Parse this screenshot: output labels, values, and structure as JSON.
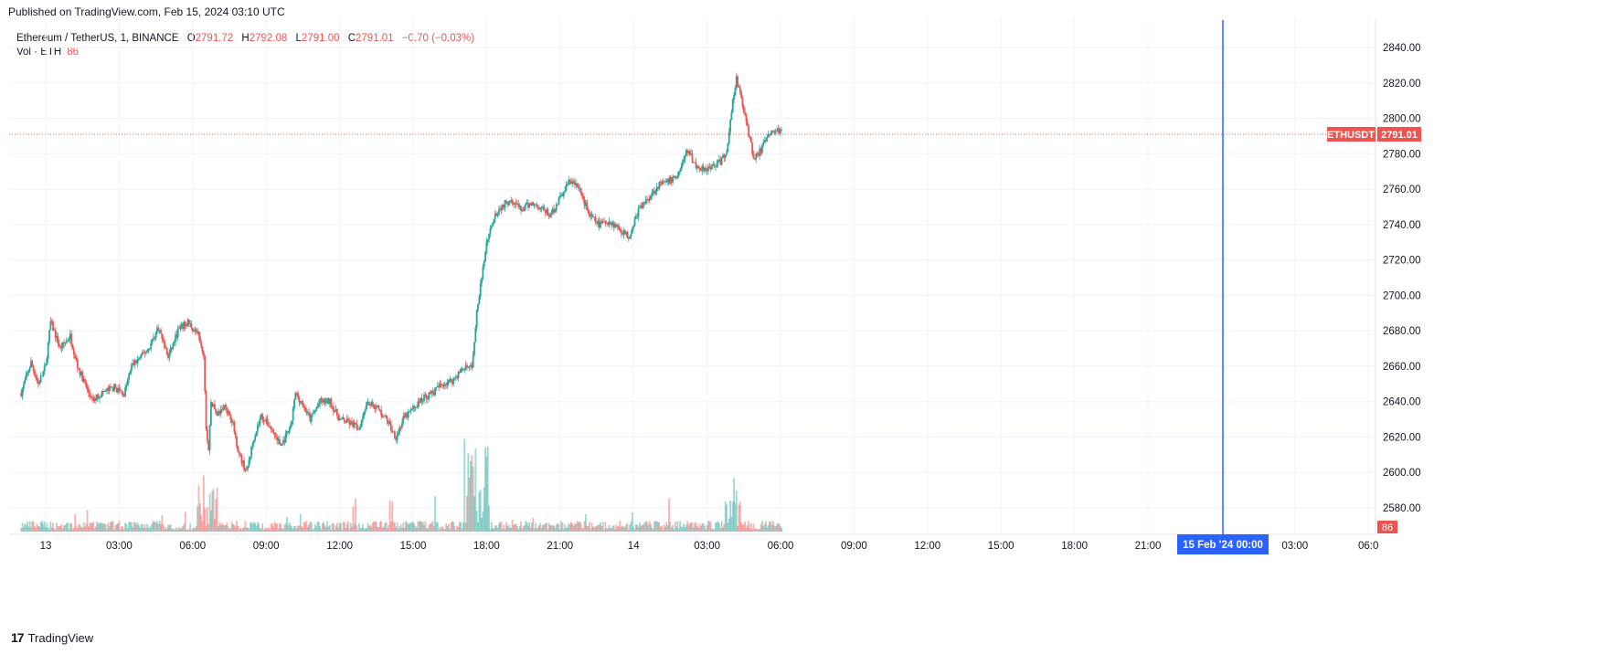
{
  "header": {
    "published": "Published on TradingView.com, Feb 15, 2024 03:10 UTC",
    "symbol": "Ethereum / TetherUS, 1, BINANCE",
    "open_label": "O",
    "open": "2791.72",
    "high_label": "H",
    "high": "2792.08",
    "low_label": "L",
    "low": "2791.00",
    "close_label": "C",
    "close": "2791.01",
    "change": "−0.70 (−0.03%)",
    "vol_label": "Vol · ETH",
    "vol_value": "86"
  },
  "price_label": {
    "ticker": "ETHUSDT",
    "price": "2791.01"
  },
  "volume_badge": "86",
  "crosshair_label": "15 Feb '24   00:00",
  "footer": {
    "brand": "TradingView"
  },
  "colors": {
    "up": "#26a69a",
    "down": "#ef5350",
    "crosshair": "#2962ff",
    "grid": "#f0f3fa",
    "price_line": "#ef5350"
  },
  "chart_data": {
    "type": "candlestick",
    "ylim": [
      2570,
      2850
    ],
    "y_ticks": [
      "2840.00",
      "2820.00",
      "2800.00",
      "2780.00",
      "2760.00",
      "2740.00",
      "2720.00",
      "2700.00",
      "2680.00",
      "2660.00",
      "2640.00",
      "2620.00",
      "2600.00",
      "2580.00"
    ],
    "x_ticks": [
      "13",
      "03:00",
      "06:00",
      "09:00",
      "12:00",
      "15:00",
      "18:00",
      "21:00",
      "14",
      "03:00",
      "06:00",
      "09:00",
      "12:00",
      "15:00",
      "18:00",
      "21:00",
      "03:00",
      "06:0"
    ],
    "last_price": 2791.01,
    "price_path": [
      [
        -1.0,
        2645
      ],
      [
        -0.6,
        2662
      ],
      [
        -0.3,
        2650
      ],
      [
        0.0,
        2660
      ],
      [
        0.2,
        2685
      ],
      [
        0.6,
        2670
      ],
      [
        1.0,
        2677
      ],
      [
        1.3,
        2660
      ],
      [
        1.6,
        2650
      ],
      [
        1.9,
        2640
      ],
      [
        2.3,
        2645
      ],
      [
        2.8,
        2648
      ],
      [
        3.2,
        2644
      ],
      [
        3.5,
        2660
      ],
      [
        3.8,
        2664
      ],
      [
        4.2,
        2670
      ],
      [
        4.6,
        2682
      ],
      [
        5.0,
        2665
      ],
      [
        5.4,
        2680
      ],
      [
        5.8,
        2685
      ],
      [
        6.2,
        2678
      ],
      [
        6.45,
        2665
      ],
      [
        6.55,
        2625
      ],
      [
        6.65,
        2612
      ],
      [
        6.75,
        2640
      ],
      [
        7.0,
        2632
      ],
      [
        7.3,
        2638
      ],
      [
        7.6,
        2630
      ],
      [
        7.9,
        2610
      ],
      [
        8.2,
        2600
      ],
      [
        8.5,
        2620
      ],
      [
        8.8,
        2632
      ],
      [
        9.2,
        2625
      ],
      [
        9.6,
        2615
      ],
      [
        10.0,
        2625
      ],
      [
        10.2,
        2645
      ],
      [
        10.5,
        2638
      ],
      [
        10.8,
        2630
      ],
      [
        11.2,
        2640
      ],
      [
        11.6,
        2640
      ],
      [
        12.0,
        2630
      ],
      [
        12.4,
        2628
      ],
      [
        12.8,
        2625
      ],
      [
        13.1,
        2640
      ],
      [
        13.5,
        2637
      ],
      [
        13.9,
        2630
      ],
      [
        14.3,
        2620
      ],
      [
        14.6,
        2630
      ],
      [
        15.0,
        2636
      ],
      [
        15.4,
        2642
      ],
      [
        15.8,
        2645
      ],
      [
        16.2,
        2650
      ],
      [
        16.6,
        2652
      ],
      [
        17.0,
        2658
      ],
      [
        17.4,
        2660
      ],
      [
        17.6,
        2690
      ],
      [
        17.8,
        2710
      ],
      [
        18.0,
        2730
      ],
      [
        18.3,
        2745
      ],
      [
        18.6,
        2750
      ],
      [
        19.0,
        2755
      ],
      [
        19.4,
        2748
      ],
      [
        19.8,
        2752
      ],
      [
        20.2,
        2750
      ],
      [
        20.6,
        2745
      ],
      [
        21.0,
        2755
      ],
      [
        21.4,
        2765
      ],
      [
        21.8,
        2760
      ],
      [
        22.2,
        2745
      ],
      [
        22.6,
        2740
      ],
      [
        23.0,
        2742
      ],
      [
        23.4,
        2738
      ],
      [
        23.8,
        2733
      ],
      [
        24.2,
        2748
      ],
      [
        24.6,
        2755
      ],
      [
        25.0,
        2762
      ],
      [
        25.4,
        2764
      ],
      [
        25.8,
        2768
      ],
      [
        26.2,
        2782
      ],
      [
        26.6,
        2772
      ],
      [
        27.0,
        2772
      ],
      [
        27.5,
        2775
      ],
      [
        27.8,
        2780
      ],
      [
        28.0,
        2805
      ],
      [
        28.2,
        2822
      ],
      [
        28.5,
        2805
      ],
      [
        28.9,
        2778
      ],
      [
        29.2,
        2782
      ],
      [
        29.5,
        2790
      ],
      [
        29.9,
        2794
      ],
      [
        30.1,
        2791
      ]
    ]
  }
}
